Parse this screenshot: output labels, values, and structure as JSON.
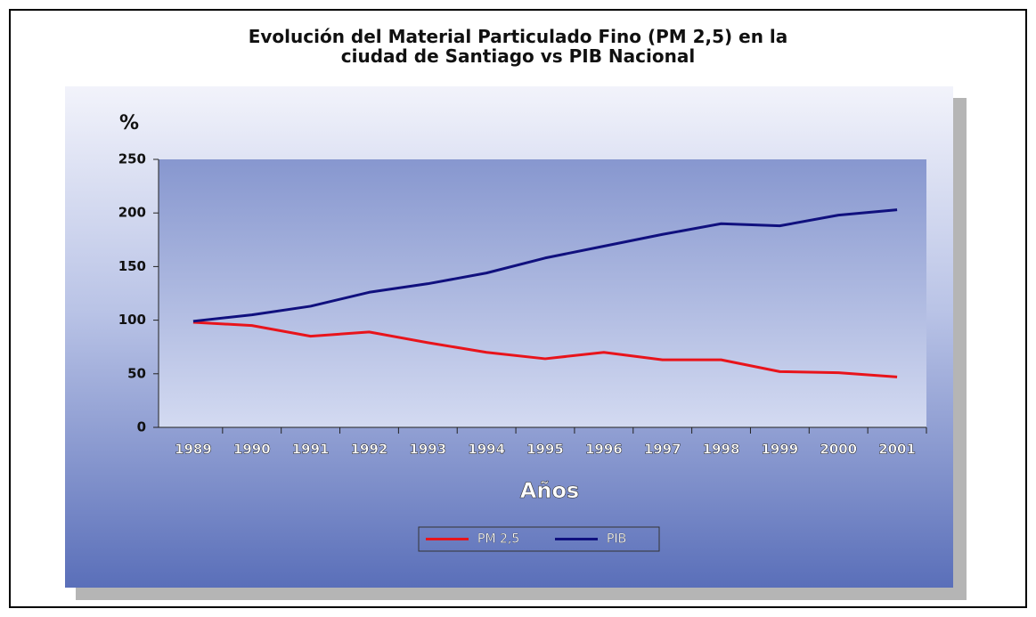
{
  "chart_data": {
    "type": "line",
    "title": "Evolución del Material Particulado Fino (PM 2,5) en la\nciudad de Santiago vs PIB Nacional",
    "ylabel": "%",
    "xlabel": "Años",
    "categories": [
      "1989",
      "1990",
      "1991",
      "1992",
      "1993",
      "1994",
      "1995",
      "1996",
      "1997",
      "1998",
      "1999",
      "2000",
      "2001"
    ],
    "series": [
      {
        "name": "PM 2,5",
        "color": "#e8141b",
        "values": [
          98,
          95,
          85,
          89,
          79,
          70,
          64,
          70,
          63,
          63,
          52,
          51,
          47
        ]
      },
      {
        "name": "PIB",
        "color": "#10107e",
        "values": [
          99,
          105,
          113,
          126,
          134,
          144,
          158,
          169,
          180,
          190,
          188,
          198,
          203
        ]
      }
    ],
    "ylim": [
      0,
      250
    ],
    "yticks": [
      0,
      50,
      100,
      150,
      200,
      250
    ],
    "grid": false,
    "legend": "bottom"
  }
}
